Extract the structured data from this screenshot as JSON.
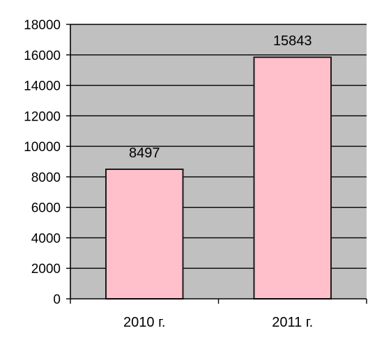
{
  "chart_data": {
    "type": "bar",
    "title": "",
    "xlabel": "",
    "ylabel": "",
    "categories": [
      "2010 г.",
      "2011 г."
    ],
    "values": [
      8497,
      15843
    ],
    "data_labels": [
      "8497",
      "15843"
    ],
    "ylim": [
      0,
      18000
    ],
    "yticks": [
      0,
      2000,
      4000,
      6000,
      8000,
      10000,
      12000,
      14000,
      16000,
      18000
    ],
    "ytick_labels": [
      "0",
      "2000",
      "4000",
      "6000",
      "8000",
      "10000",
      "12000",
      "14000",
      "16000",
      "18000"
    ],
    "grid": true,
    "legend": "none",
    "colors": {
      "plot_background": "#c0c0c0",
      "bar_fill": "#ffc0cb",
      "bar_stroke": "#1a1a1a",
      "gridline": "#000000"
    }
  }
}
